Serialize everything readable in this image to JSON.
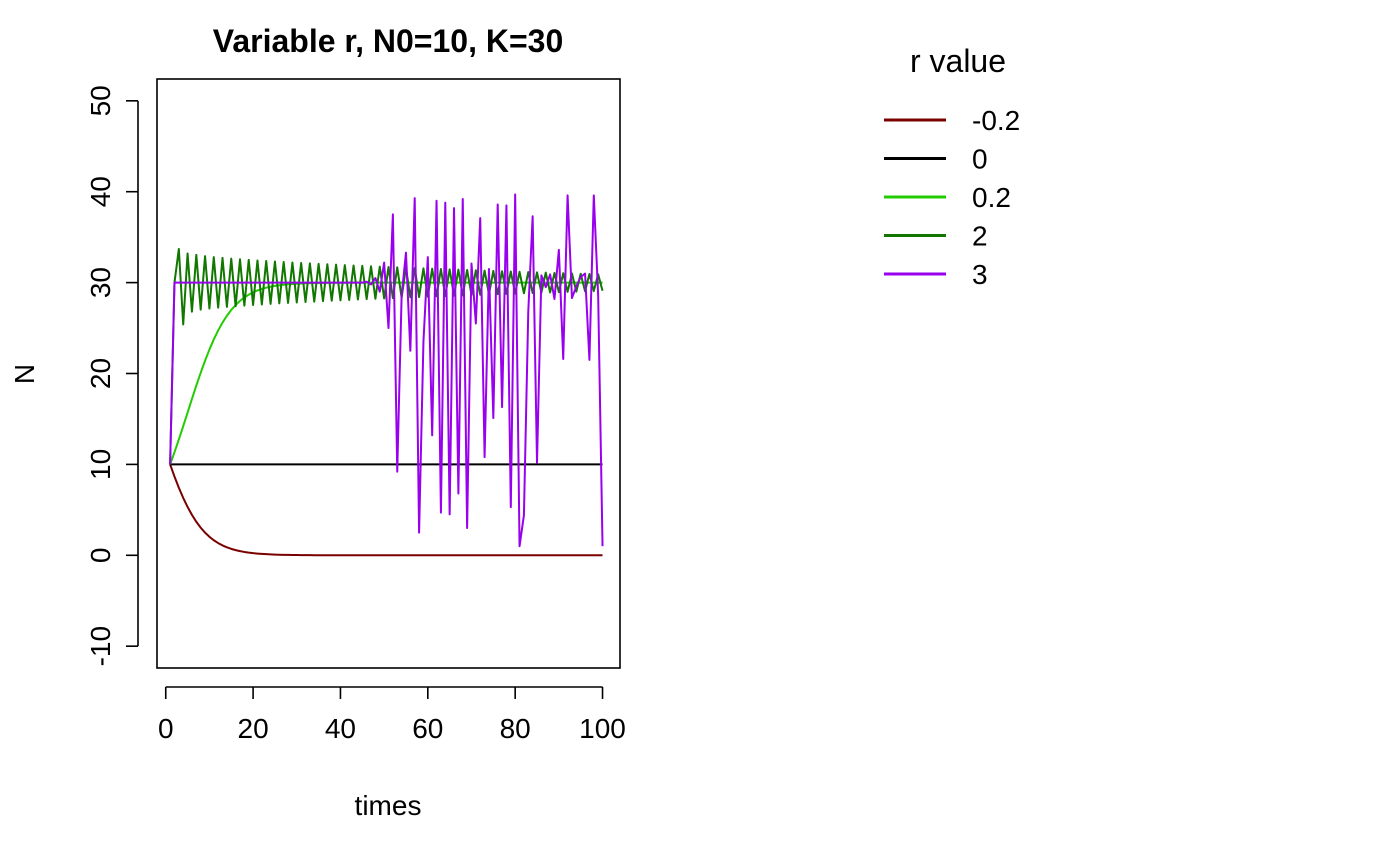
{
  "chart_data": {
    "type": "line",
    "title": "Variable r, N0=10, K=30",
    "xlabel": "times",
    "ylabel": "N",
    "xlim": [
      -2,
      104
    ],
    "ylim": [
      -12.4,
      52.4
    ],
    "xticks": [
      0,
      20,
      40,
      60,
      80,
      100
    ],
    "yticks": [
      -10,
      0,
      10,
      20,
      30,
      40,
      50
    ],
    "grid": false,
    "legend": {
      "title": "r value",
      "placement": "right",
      "entries": [
        {
          "label": "-0.2",
          "color": "#7a0000"
        },
        {
          "label": "0",
          "color": "#000000"
        },
        {
          "label": "0.2",
          "color": "#22cc00"
        },
        {
          "label": "2",
          "color": "#117700"
        },
        {
          "label": "3",
          "color": "#9900ee"
        }
      ]
    },
    "series": [
      {
        "name": "-0.2",
        "color": "#7a0000",
        "model": "logistic",
        "r": -0.2,
        "N0": 10,
        "K": 30,
        "t_start": 1,
        "t_end": 100
      },
      {
        "name": "0",
        "color": "#000000",
        "model": "logistic",
        "r": 0,
        "N0": 10,
        "K": 30,
        "t_start": 1,
        "t_end": 100
      },
      {
        "name": "0.2",
        "color": "#22cc00",
        "model": "logistic",
        "r": 0.2,
        "N0": 10,
        "K": 30,
        "t_start": 1,
        "t_end": 100
      },
      {
        "name": "2",
        "color": "#117700",
        "model": "oscillating",
        "x": [
          1,
          2,
          3,
          4,
          5,
          100
        ],
        "y": [
          10,
          30,
          33.7,
          25.4,
          33.2,
          29.0
        ],
        "amplitude_end": 0.9,
        "t_start": 1,
        "t_end": 100
      },
      {
        "name": "3",
        "color": "#9900ee",
        "x": [
          1,
          2,
          45,
          46,
          47,
          48,
          49,
          50,
          51,
          52,
          53,
          54,
          55,
          56,
          57,
          58,
          59,
          60,
          61,
          62,
          63,
          64,
          65,
          66,
          67,
          68,
          69,
          70,
          71,
          72,
          73,
          74,
          75,
          76,
          77,
          78,
          79,
          80,
          81,
          82,
          83,
          84,
          85,
          86,
          87,
          88,
          89,
          90,
          91,
          92,
          93,
          94,
          95,
          96,
          97,
          98,
          99,
          100
        ],
        "y": [
          10,
          30,
          30,
          30.1,
          29.8,
          30.5,
          29.0,
          32.2,
          25.0,
          37.5,
          9.2,
          28.5,
          33.3,
          22.5,
          39.3,
          2.5,
          23.5,
          32.8,
          13.2,
          39.0,
          4.7,
          38.8,
          4.5,
          38.2,
          6.8,
          39.2,
          3.0,
          32.1,
          25.5,
          37.1,
          10.8,
          31.5,
          15.1,
          38.6,
          16.3,
          38.5,
          5.3,
          39.7,
          1.0,
          4.4,
          26.8,
          37.3,
          10.2,
          30.8,
          29.5,
          30.9,
          28.2,
          33.6,
          21.6,
          39.6,
          28.3,
          29.6,
          30.6,
          31.0,
          21.5,
          39.6,
          28.6,
          1.0
        ]
      }
    ]
  }
}
